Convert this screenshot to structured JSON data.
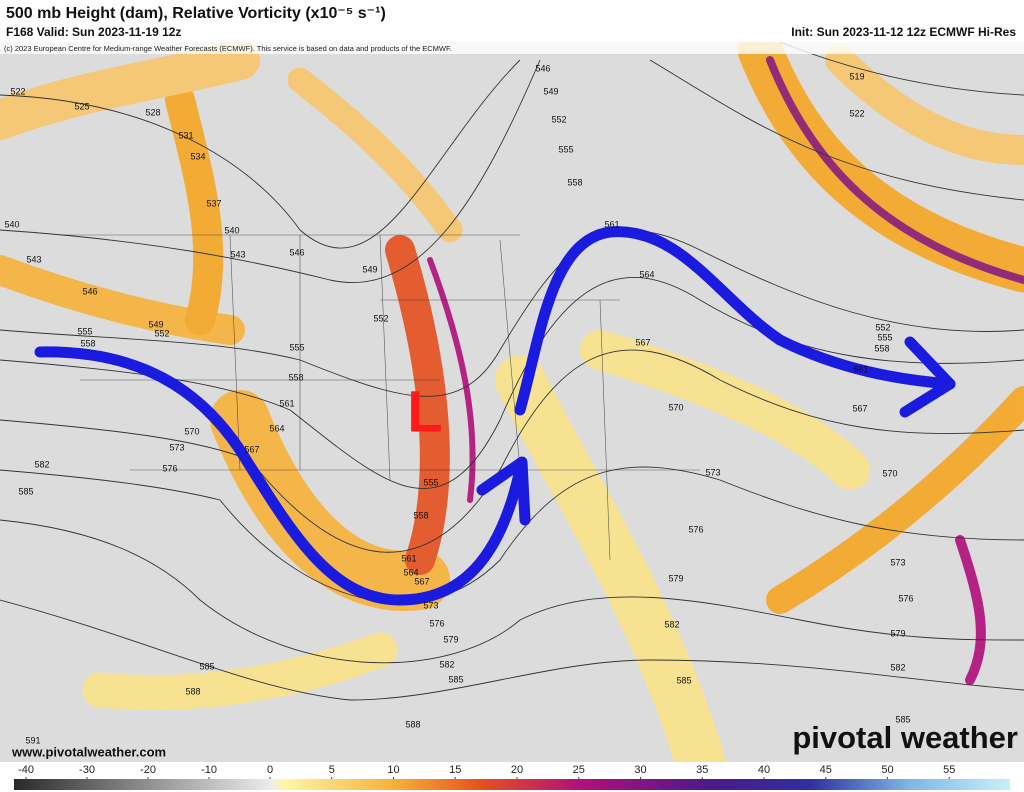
{
  "header": {
    "title": "500 mb Height (dam), Relative Vorticity (x10⁻⁵ s⁻¹)",
    "valid": "F168 Valid: Sun 2023-11-19 12z",
    "init": "Init: Sun 2023-11-12 12z ECMWF Hi-Res",
    "copyright": "(c) 2023 European Centre for Medium-range Weather Forecasts (ECMWF). This service is based on data and products of the ECMWF."
  },
  "map": {
    "low_label": "L",
    "contour_labels": [
      "522",
      "525",
      "528",
      "531",
      "534",
      "537",
      "540",
      "540",
      "543",
      "543",
      "546",
      "546",
      "549",
      "552",
      "549",
      "552",
      "555",
      "558",
      "555",
      "558",
      "561",
      "564",
      "567",
      "570",
      "573",
      "576",
      "582",
      "585",
      "546",
      "549",
      "552",
      "555",
      "558",
      "561",
      "564",
      "567",
      "570",
      "573",
      "576",
      "579",
      "582",
      "585",
      "555",
      "558",
      "561",
      "564",
      "567",
      "573",
      "576",
      "579",
      "582",
      "585",
      "585",
      "588",
      "588",
      "591",
      "519",
      "522",
      "552",
      "555",
      "558",
      "561",
      "567",
      "570",
      "573",
      "576",
      "579",
      "582",
      "585"
    ]
  },
  "footer": {
    "website": "www.pivotalweather.com",
    "logo": "pivotal weather"
  },
  "colorbar": {
    "ticks": [
      -40,
      -30,
      -20,
      -10,
      0,
      5,
      10,
      15,
      20,
      25,
      30,
      35,
      40,
      45,
      50,
      55
    ]
  }
}
